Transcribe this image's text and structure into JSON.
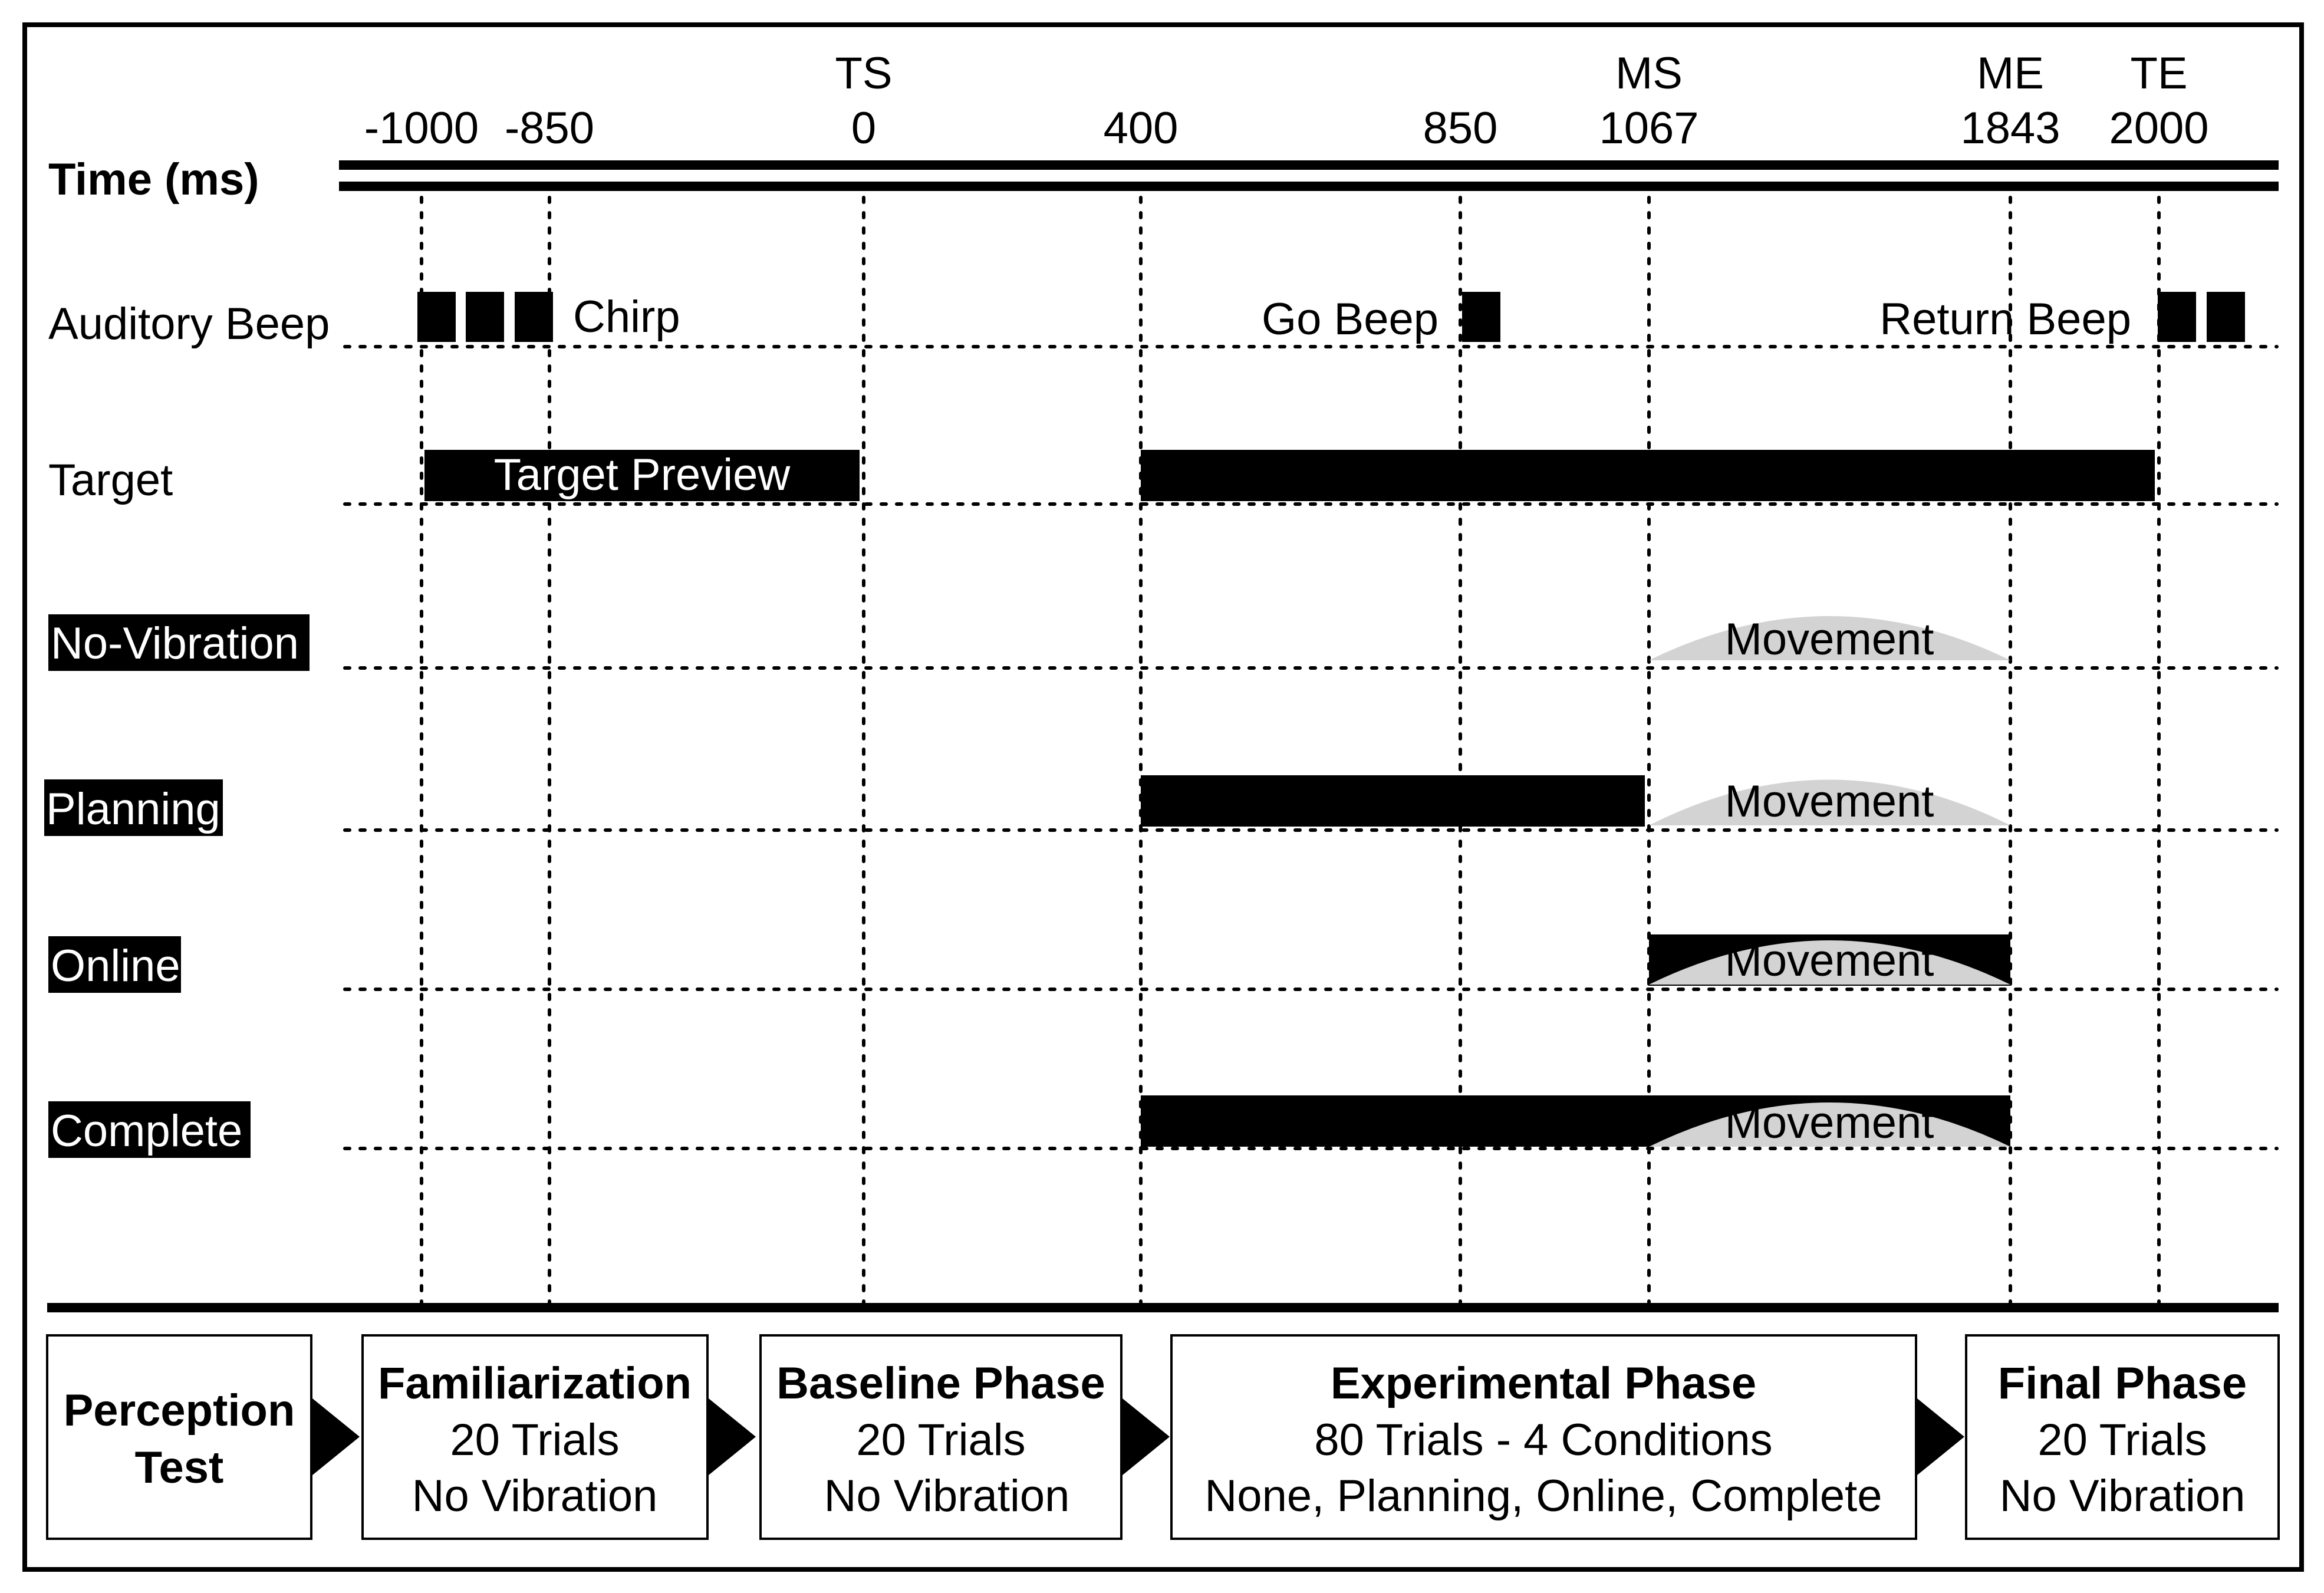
{
  "timeline": {
    "axis_label": "Time (ms)",
    "ticks": [
      {
        "value": "-1000",
        "event": ""
      },
      {
        "value": "-850",
        "event": ""
      },
      {
        "value": "0",
        "event": "TS"
      },
      {
        "value": "400",
        "event": ""
      },
      {
        "value": "850",
        "event": ""
      },
      {
        "value": "1067",
        "event": "MS"
      },
      {
        "value": "1843",
        "event": "ME"
      },
      {
        "value": "2000",
        "event": "TE"
      }
    ]
  },
  "rows": {
    "auditory": {
      "label": "Auditory Beep",
      "chirp": "Chirp",
      "go_beep": "Go Beep",
      "return_beep": "Return Beep"
    },
    "target": {
      "label": "Target",
      "preview": "Target Preview"
    },
    "no_vibration": {
      "label": "No-Vibration",
      "movement": "Movement"
    },
    "planning": {
      "label": "Planning",
      "movement": "Movement"
    },
    "online": {
      "label": "Online",
      "movement": "Movement"
    },
    "complete": {
      "label": "Complete",
      "movement": "Movement"
    }
  },
  "phases": [
    {
      "title": "Perception",
      "title2": "Test",
      "line1": "",
      "line2": ""
    },
    {
      "title": "Familiarization",
      "title2": "",
      "line1": "20 Trials",
      "line2": "No Vibration"
    },
    {
      "title": "Baseline Phase",
      "title2": "",
      "line1": "20 Trials",
      "line2": "No Vibration"
    },
    {
      "title": "Experimental Phase",
      "title2": "",
      "line1": "80 Trials - 4 Conditions",
      "line2": "None, Planning, Online, Complete"
    },
    {
      "title": "Final Phase",
      "title2": "",
      "line1": "20 Trials",
      "line2": "No Vibration"
    }
  ],
  "colors": {
    "bar": "#000000",
    "movement": "#d3d3d3",
    "label_bg": "#000000"
  }
}
